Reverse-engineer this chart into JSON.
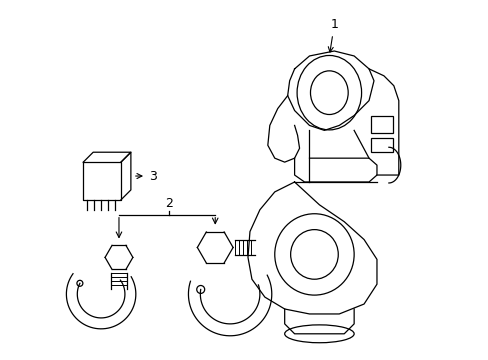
{
  "bg_color": "#ffffff",
  "line_color": "#000000",
  "fig_width": 4.89,
  "fig_height": 3.6,
  "dpi": 100,
  "label_fontsize": 9
}
